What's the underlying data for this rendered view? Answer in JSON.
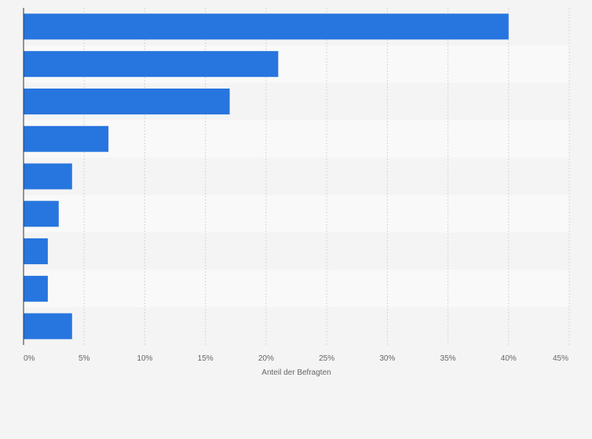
{
  "chart_data": {
    "type": "bar",
    "orientation": "horizontal",
    "categories": [
      "",
      "",
      "",
      "",
      "",
      "",
      "",
      "",
      ""
    ],
    "series": [
      {
        "values": [
          40,
          21,
          17,
          7,
          4,
          2.9,
          2,
          2,
          4
        ]
      }
    ],
    "xlim": [
      0,
      45
    ],
    "xticks": [
      "0%",
      "5%",
      "10%",
      "15%",
      "20%",
      "25%",
      "30%",
      "35%",
      "40%",
      "45%"
    ],
    "xlabel": "Anteil der Befragten",
    "ylabel": "",
    "grid": true,
    "legend": "none"
  },
  "colors": {
    "bar": "#2775de",
    "background": "#f4f4f4",
    "band_light": "#f9f9f9",
    "band_dark": "#f4f4f4",
    "grid": "#d6d6d6",
    "axis": "#333333",
    "text": "#666666"
  }
}
